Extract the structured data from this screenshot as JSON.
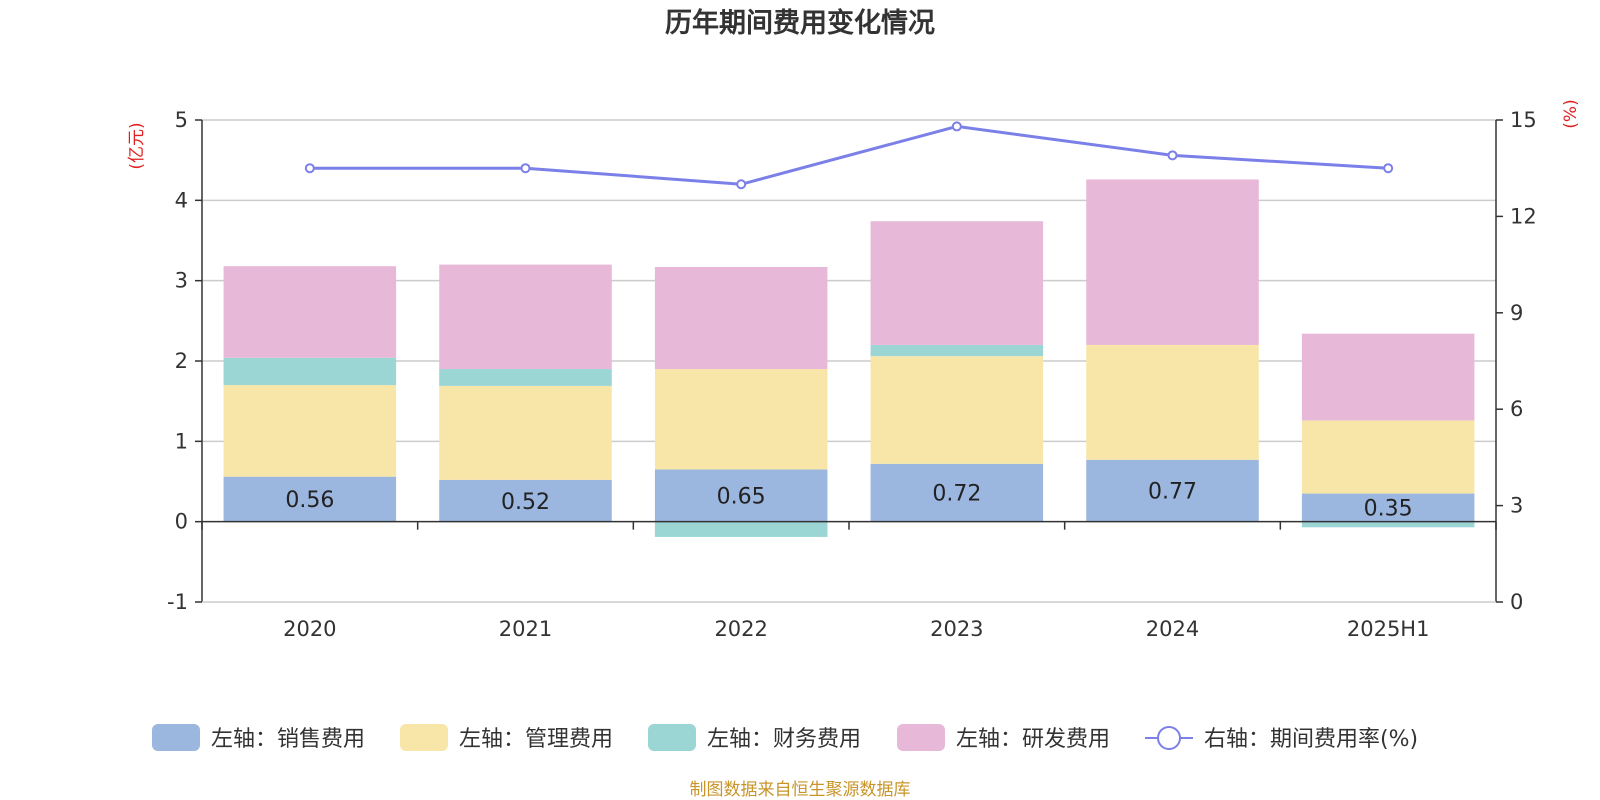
{
  "title": "历年期间费用变化情况",
  "source": "制图数据来自恒生聚源数据库",
  "chart_data": {
    "type": "bar",
    "stacked": true,
    "categories": [
      "2020",
      "2021",
      "2022",
      "2023",
      "2024",
      "2025H1"
    ],
    "left_axis": {
      "unit": "(亿元)",
      "ylim": [
        -1,
        5
      ],
      "ticks": [
        "-1",
        "0",
        "1",
        "2",
        "3",
        "4",
        "5"
      ]
    },
    "right_axis": {
      "unit": "(%)",
      "ylim": [
        0,
        15
      ],
      "ticks": [
        "0",
        "3",
        "6",
        "9",
        "12",
        "15"
      ]
    },
    "grid": true,
    "legend_position": "bottom",
    "series": [
      {
        "name": "左轴：销售费用",
        "axis": "left",
        "type": "bar",
        "color": "#9bb7e0",
        "values": [
          0.56,
          0.52,
          0.65,
          0.72,
          0.77,
          0.35
        ],
        "labels": [
          "0.56",
          "0.52",
          "0.65",
          "0.72",
          "0.77",
          "0.35"
        ]
      },
      {
        "name": "左轴：管理费用",
        "axis": "left",
        "type": "bar",
        "color": "#f8e6a8",
        "values": [
          1.14,
          1.17,
          1.25,
          1.34,
          1.43,
          0.91
        ]
      },
      {
        "name": "左轴：财务费用",
        "axis": "left",
        "type": "bar",
        "color": "#9bd5d4",
        "values": [
          0.34,
          0.21,
          -0.19,
          0.14,
          0.0,
          -0.07
        ]
      },
      {
        "name": "左轴：研发费用",
        "axis": "left",
        "type": "bar",
        "color": "#e8b8d8",
        "values": [
          1.14,
          1.3,
          1.27,
          1.54,
          2.06,
          1.08
        ]
      },
      {
        "name": "右轴：期间费用率(%)",
        "axis": "right",
        "type": "line",
        "color": "#7b7fe8",
        "values": [
          13.5,
          13.5,
          13.0,
          14.8,
          13.9,
          13.5
        ]
      }
    ]
  }
}
